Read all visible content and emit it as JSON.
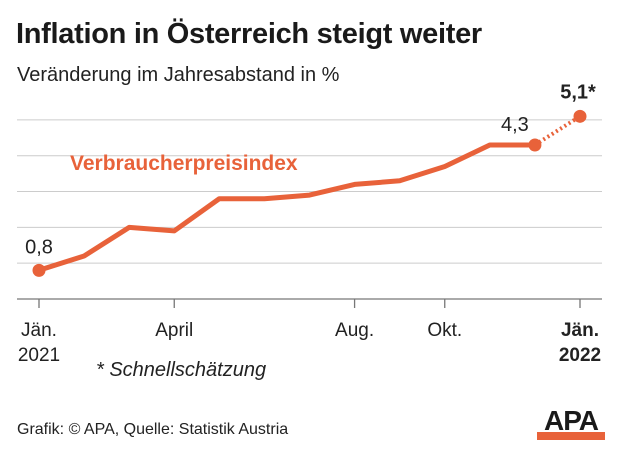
{
  "header": {
    "title": "Inflation in Österreich steigt weiter",
    "subtitle": "Veränderung im Jahresabstand in %"
  },
  "footnote": "* Schnellschätzung",
  "credit": "Grafik: © APA, Quelle: Statistik Austria",
  "logo": {
    "text": "APA"
  },
  "colors": {
    "accent": "#e8623a",
    "grid": "#cccccc",
    "axis": "#777777",
    "text": "#222222"
  },
  "chart_data": {
    "type": "line",
    "title": "Inflation in Österreich steigt weiter",
    "subtitle": "Veränderung im Jahresabstand in %",
    "xlabel": "",
    "ylabel": "",
    "series": [
      {
        "name": "Verbraucherpreisindex",
        "x": [
          "2021-01",
          "2021-02",
          "2021-03",
          "2021-04",
          "2021-05",
          "2021-06",
          "2021-07",
          "2021-08",
          "2021-09",
          "2021-10",
          "2021-11",
          "2021-12",
          "2022-01"
        ],
        "values": [
          0.8,
          1.2,
          2.0,
          1.9,
          2.8,
          2.8,
          2.9,
          3.2,
          3.3,
          3.7,
          4.3,
          4.3,
          5.1
        ],
        "estimated_last": true
      }
    ],
    "data_labels": [
      {
        "x": "2021-01",
        "text": "0,8"
      },
      {
        "x": "2021-12",
        "text": "4,3"
      },
      {
        "x": "2022-01",
        "text": "5,1*"
      }
    ],
    "x_ticks": [
      {
        "x": "2021-01",
        "lines": [
          "Jän.",
          "2021"
        ],
        "bold": false
      },
      {
        "x": "2021-04",
        "lines": [
          "April"
        ],
        "bold": false
      },
      {
        "x": "2021-08",
        "lines": [
          "Aug."
        ],
        "bold": false
      },
      {
        "x": "2021-10",
        "lines": [
          "Okt."
        ],
        "bold": false
      },
      {
        "x": "2022-01",
        "lines": [
          "Jän.",
          "2022"
        ],
        "bold": true
      }
    ],
    "ylim": [
      0,
      5.5
    ],
    "grid": true,
    "legend": "inline"
  }
}
